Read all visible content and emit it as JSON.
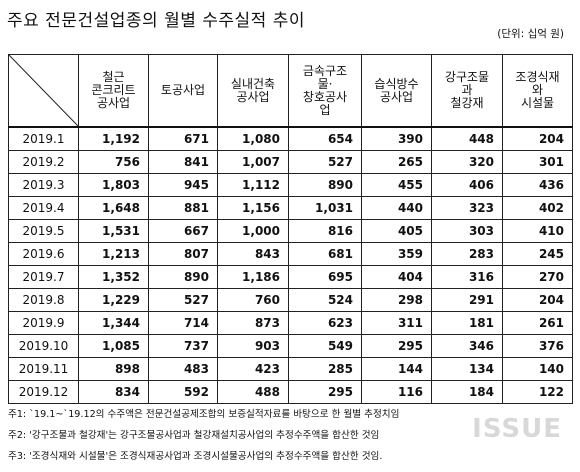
{
  "title": "주요 전문건설업종의 월별 수주실적 추이",
  "unit": "(단위: 십억 원)",
  "headers": [
    [
      "철근",
      "콘크리트",
      "공사업"
    ],
    [
      "토공사업"
    ],
    [
      "실내건축",
      "공사업"
    ],
    [
      "금속구조",
      "물·",
      "창호공사",
      "업"
    ],
    [
      "습식방수",
      "공사업"
    ],
    [
      "강구조물",
      "과",
      "철강재"
    ],
    [
      "조경식재",
      "와",
      "시설물"
    ]
  ],
  "rows": [
    [
      "2019.1",
      "1,192",
      "671",
      "1,080",
      "654",
      "390",
      "448",
      "204"
    ],
    [
      "2019.2",
      "756",
      "841",
      "1,007",
      "527",
      "265",
      "320",
      "301"
    ],
    [
      "2019.3",
      "1,803",
      "945",
      "1,112",
      "890",
      "455",
      "406",
      "436"
    ],
    [
      "2019.4",
      "1,648",
      "881",
      "1,156",
      "1,031",
      "440",
      "323",
      "402"
    ],
    [
      "2019.5",
      "1,531",
      "667",
      "1,000",
      "816",
      "405",
      "303",
      "410"
    ],
    [
      "2019.6",
      "1,213",
      "807",
      "843",
      "681",
      "359",
      "283",
      "245"
    ],
    [
      "2019.7",
      "1,352",
      "890",
      "1,186",
      "695",
      "404",
      "316",
      "270"
    ],
    [
      "2019.8",
      "1,229",
      "527",
      "760",
      "524",
      "298",
      "291",
      "204"
    ],
    [
      "2019.9",
      "1,344",
      "714",
      "873",
      "623",
      "311",
      "181",
      "261"
    ],
    [
      "2019.10",
      "1,085",
      "737",
      "903",
      "549",
      "295",
      "346",
      "376"
    ],
    [
      "2019.11",
      "898",
      "483",
      "423",
      "285",
      "144",
      "134",
      "140"
    ],
    [
      "2019.12",
      "834",
      "592",
      "488",
      "295",
      "116",
      "184",
      "122"
    ]
  ],
  "notes": [
    "주1: `19.1~`19.12의 수주액은 전문건설공제조합의 보증실적자료를 바탕으로 한 월별 추정치임",
    "주2: '강구조물과 철강재'는 강구조물공사업과 철강재설치공사업의 추정수주액을 합산한 것임",
    "주3: '조경식재와 시설물'은 조경식재공사업과 조경시설물공사업의 추정수주액을 합산한 것임."
  ],
  "watermark": "ISSUE"
}
